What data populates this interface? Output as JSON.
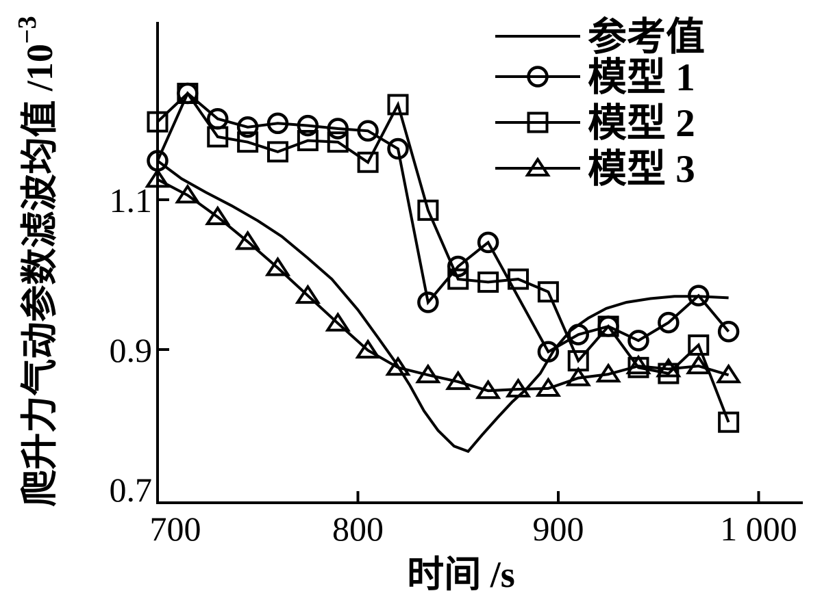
{
  "figure": {
    "background_color": "#ffffff",
    "ink_color": "#000000"
  },
  "chart_data": {
    "type": "line",
    "title": "",
    "xlabel": "时间 /s",
    "ylabel": "爬升力气动参数滤波均值 /10⁻³",
    "ylabel_base": "爬升力气动参数滤波均值 /10",
    "ylabel_exponent": "−3",
    "grid": "off",
    "legend_position": "top-right-inside",
    "x_axis": {
      "min": 700,
      "max": 1022,
      "ticks": [
        {
          "value": 700,
          "label": "700"
        },
        {
          "value": 800,
          "label": "800"
        },
        {
          "value": 900,
          "label": "900"
        },
        {
          "value": 1000,
          "label": "1 000"
        }
      ]
    },
    "y_axis": {
      "min": 0.7,
      "max": 1.34,
      "ticks": [
        {
          "value": 0.7,
          "label": "0.7"
        },
        {
          "value": 0.9,
          "label": "0.9"
        },
        {
          "value": 1.1,
          "label": "1.1"
        }
      ]
    },
    "legend": [
      {
        "label": "参考值",
        "marker": "none"
      },
      {
        "label": "模型 1",
        "marker": "circle"
      },
      {
        "label": "模型 2",
        "marker": "square"
      },
      {
        "label": "模型 3",
        "marker": "triangle"
      }
    ],
    "series": [
      {
        "name": "参考值",
        "marker": "none",
        "points": [
          [
            700,
            1.152
          ],
          [
            712,
            1.128
          ],
          [
            724,
            1.11
          ],
          [
            737,
            1.092
          ],
          [
            750,
            1.072
          ],
          [
            762,
            1.051
          ],
          [
            775,
            1.022
          ],
          [
            787,
            0.994
          ],
          [
            800,
            0.953
          ],
          [
            810,
            0.916
          ],
          [
            818,
            0.886
          ],
          [
            826,
            0.852
          ],
          [
            833,
            0.818
          ],
          [
            840,
            0.792
          ],
          [
            848,
            0.771
          ],
          [
            855,
            0.764
          ],
          [
            862,
            0.786
          ],
          [
            870,
            0.81
          ],
          [
            877,
            0.83
          ],
          [
            884,
            0.847
          ],
          [
            891,
            0.868
          ],
          [
            898,
            0.9
          ],
          [
            906,
            0.925
          ],
          [
            915,
            0.942
          ],
          [
            924,
            0.955
          ],
          [
            934,
            0.963
          ],
          [
            946,
            0.968
          ],
          [
            958,
            0.971
          ],
          [
            970,
            0.971
          ],
          [
            985,
            0.969
          ]
        ]
      },
      {
        "name": "模型 1",
        "marker": "circle",
        "points": [
          [
            700,
            1.152
          ],
          [
            715,
            1.242
          ],
          [
            730,
            1.208
          ],
          [
            745,
            1.197
          ],
          [
            760,
            1.202
          ],
          [
            775,
            1.199
          ],
          [
            790,
            1.195
          ],
          [
            805,
            1.192
          ],
          [
            820,
            1.168
          ],
          [
            835,
            0.963
          ],
          [
            850,
            1.011
          ],
          [
            865,
            1.043
          ],
          [
            895,
            0.897
          ],
          [
            910,
            0.92
          ],
          [
            925,
            0.931
          ],
          [
            940,
            0.912
          ],
          [
            955,
            0.936
          ],
          [
            970,
            0.972
          ],
          [
            985,
            0.924
          ]
        ]
      },
      {
        "name": "模型 2",
        "marker": "square",
        "points": [
          [
            700,
            1.204
          ],
          [
            715,
            1.242
          ],
          [
            730,
            1.184
          ],
          [
            745,
            1.177
          ],
          [
            760,
            1.164
          ],
          [
            775,
            1.179
          ],
          [
            790,
            1.177
          ],
          [
            805,
            1.15
          ],
          [
            820,
            1.227
          ],
          [
            835,
            1.086
          ],
          [
            850,
            0.994
          ],
          [
            865,
            0.99
          ],
          [
            880,
            0.994
          ],
          [
            895,
            0.977
          ],
          [
            910,
            0.885
          ],
          [
            925,
            0.931
          ],
          [
            940,
            0.876
          ],
          [
            955,
            0.868
          ],
          [
            970,
            0.906
          ],
          [
            985,
            0.803
          ]
        ]
      },
      {
        "name": "模型 3",
        "marker": "triangle",
        "points": [
          [
            700,
            1.127
          ],
          [
            715,
            1.106
          ],
          [
            730,
            1.077
          ],
          [
            745,
            1.044
          ],
          [
            760,
            1.009
          ],
          [
            775,
            0.972
          ],
          [
            790,
            0.935
          ],
          [
            805,
            0.899
          ],
          [
            820,
            0.876
          ],
          [
            835,
            0.866
          ],
          [
            850,
            0.857
          ],
          [
            865,
            0.845
          ],
          [
            880,
            0.847
          ],
          [
            895,
            0.848
          ],
          [
            910,
            0.862
          ],
          [
            925,
            0.867
          ],
          [
            940,
            0.878
          ],
          [
            955,
            0.874
          ],
          [
            970,
            0.878
          ],
          [
            985,
            0.866
          ]
        ]
      }
    ]
  }
}
